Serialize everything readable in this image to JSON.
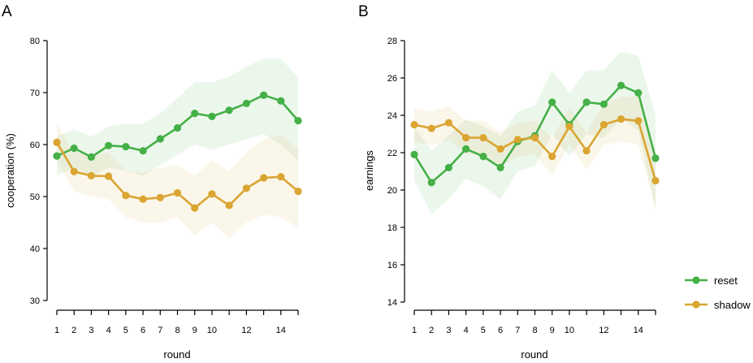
{
  "chart_data": [
    {
      "type": "line",
      "panel_label": "A",
      "xlabel": "round",
      "ylabel": "cooperation (%)",
      "x": [
        1,
        2,
        3,
        4,
        5,
        6,
        7,
        8,
        9,
        10,
        11,
        12,
        13,
        14,
        15
      ],
      "xticks": [
        1,
        2,
        3,
        4,
        5,
        6,
        7,
        8,
        9,
        10,
        12,
        14
      ],
      "xlim": [
        1,
        15
      ],
      "ylim": [
        30,
        80
      ],
      "yticks": [
        30,
        40,
        50,
        60,
        70,
        80
      ],
      "grid": false,
      "series": [
        {
          "name": "reset",
          "color": "#44b047",
          "values": [
            57.8,
            59.3,
            57.6,
            59.8,
            59.6,
            58.8,
            61.1,
            63.2,
            66.0,
            65.4,
            66.6,
            67.9,
            69.5,
            68.4,
            64.6
          ],
          "band_low": [
            54.0,
            55.5,
            54.0,
            55.5,
            55.0,
            54.0,
            56.0,
            58.0,
            60.0,
            59.0,
            60.0,
            61.0,
            62.0,
            60.0,
            57.0
          ],
          "band_high": [
            61.5,
            63.0,
            61.5,
            63.5,
            64.0,
            64.0,
            66.0,
            69.0,
            72.0,
            72.0,
            73.0,
            75.0,
            76.5,
            76.5,
            73.0
          ]
        },
        {
          "name": "shadow",
          "color": "#daa531",
          "values": [
            60.4,
            54.8,
            54.0,
            53.9,
            50.2,
            49.5,
            49.8,
            50.7,
            47.8,
            50.5,
            48.3,
            51.6,
            53.6,
            53.8,
            51.0
          ],
          "band_low": [
            57.0,
            51.0,
            50.0,
            49.5,
            46.0,
            45.0,
            45.0,
            46.0,
            42.5,
            45.0,
            42.0,
            45.0,
            46.5,
            46.0,
            44.0
          ],
          "band_high": [
            64.0,
            58.5,
            58.0,
            58.5,
            55.0,
            54.5,
            55.5,
            56.0,
            54.0,
            57.0,
            55.0,
            58.5,
            61.0,
            62.0,
            59.0
          ]
        }
      ]
    },
    {
      "type": "line",
      "panel_label": "B",
      "xlabel": "round",
      "ylabel": "earnings",
      "x": [
        1,
        2,
        3,
        4,
        5,
        6,
        7,
        8,
        9,
        10,
        11,
        12,
        13,
        14,
        15
      ],
      "xticks": [
        1,
        2,
        3,
        4,
        5,
        6,
        7,
        8,
        9,
        10,
        12,
        14
      ],
      "xlim": [
        1,
        15
      ],
      "ylim": [
        14,
        28
      ],
      "yticks": [
        14,
        16,
        18,
        20,
        22,
        24,
        26,
        28
      ],
      "grid": false,
      "legend_position": "right",
      "series": [
        {
          "name": "reset",
          "color": "#44b047",
          "values": [
            21.9,
            20.4,
            21.2,
            22.2,
            21.8,
            21.2,
            22.6,
            22.9,
            24.7,
            23.5,
            24.7,
            24.6,
            25.6,
            25.2,
            21.7
          ],
          "band_low": [
            20.5,
            18.7,
            19.5,
            20.6,
            20.2,
            19.5,
            21.0,
            21.3,
            23.0,
            21.8,
            23.0,
            22.8,
            23.8,
            23.2,
            19.0
          ],
          "band_high": [
            23.4,
            22.1,
            22.9,
            23.8,
            23.4,
            22.9,
            24.2,
            24.5,
            26.4,
            25.2,
            26.4,
            26.4,
            27.4,
            27.2,
            24.0
          ]
        },
        {
          "name": "shadow",
          "color": "#daa531",
          "values": [
            23.5,
            23.3,
            23.6,
            22.8,
            22.8,
            22.2,
            22.7,
            22.8,
            21.8,
            23.4,
            22.1,
            23.5,
            23.8,
            23.7,
            20.5
          ],
          "band_low": [
            22.6,
            22.4,
            22.7,
            21.9,
            21.9,
            21.3,
            21.8,
            21.9,
            20.8,
            22.4,
            21.1,
            22.4,
            22.6,
            22.4,
            19.0
          ],
          "band_high": [
            24.4,
            24.2,
            24.5,
            23.7,
            23.7,
            23.1,
            23.6,
            23.7,
            22.8,
            24.4,
            23.1,
            24.6,
            25.0,
            25.0,
            22.0
          ]
        }
      ]
    }
  ],
  "legend": [
    {
      "label": "reset",
      "color": "#44b047"
    },
    {
      "label": "shadow",
      "color": "#daa531"
    }
  ]
}
